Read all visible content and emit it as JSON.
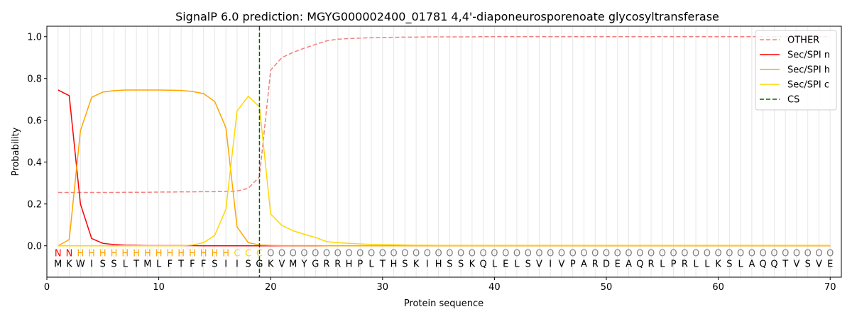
{
  "chart_data": {
    "type": "line",
    "title": "SignalP 6.0 prediction: MGYG000002400_01781 4,4'-diaponeurosporenoate glycosyltransferase",
    "xlabel": "Protein sequence",
    "ylabel": "Probability",
    "xlim": [
      0,
      71
    ],
    "ylim": [
      -0.15,
      1.05
    ],
    "x_ticks": [
      0,
      10,
      20,
      30,
      40,
      50,
      60,
      70
    ],
    "y_ticks": [
      0.0,
      0.2,
      0.4,
      0.6,
      0.8,
      1.0
    ],
    "x_tick_labels": [
      "0",
      "10",
      "20",
      "30",
      "40",
      "50",
      "60",
      "70"
    ],
    "y_tick_labels": [
      "0.0",
      "0.2",
      "0.4",
      "0.6",
      "0.8",
      "1.0"
    ],
    "grid": "vertical lines at each residue",
    "legend_position": "top-right",
    "sequence": [
      "M",
      "K",
      "W",
      "I",
      "S",
      "S",
      "L",
      "T",
      "M",
      "L",
      "F",
      "T",
      "F",
      "F",
      "S",
      "I",
      "I",
      "S",
      "G",
      "K",
      "V",
      "M",
      "Y",
      "G",
      "R",
      "R",
      "H",
      "P",
      "L",
      "T",
      "H",
      "S",
      "K",
      "I",
      "H",
      "S",
      "S",
      "K",
      "Q",
      "L",
      "E",
      "L",
      "S",
      "V",
      "I",
      "V",
      "P",
      "A",
      "R",
      "D",
      "E",
      "A",
      "Q",
      "R",
      "L",
      "P",
      "R",
      "L",
      "L",
      "K",
      "S",
      "L",
      "A",
      "Q",
      "Q",
      "T",
      "V",
      "S",
      "V",
      "E"
    ],
    "labels": [
      "N",
      "N",
      "H",
      "H",
      "H",
      "H",
      "H",
      "H",
      "H",
      "H",
      "H",
      "H",
      "H",
      "H",
      "H",
      "H",
      "C",
      "C",
      "C",
      "O",
      "O",
      "O",
      "O",
      "O",
      "O",
      "O",
      "O",
      "O",
      "O",
      "O",
      "O",
      "O",
      "O",
      "O",
      "O",
      "O",
      "O",
      "O",
      "O",
      "O",
      "O",
      "O",
      "O",
      "O",
      "O",
      "O",
      "O",
      "O",
      "O",
      "O",
      "O",
      "O",
      "O",
      "O",
      "O",
      "O",
      "O",
      "O",
      "O",
      "O",
      "O",
      "O",
      "O",
      "O",
      "O",
      "O",
      "O",
      "O",
      "O",
      "O"
    ],
    "label_colors": {
      "N": "#ff0000",
      "H": "#ffa500",
      "C": "#ffd700",
      "O": "#808080"
    },
    "cs_position": 19,
    "series": [
      {
        "name": "OTHER",
        "color": "#f08080",
        "dash": "dashed",
        "values": [
          0.255,
          0.255,
          0.255,
          0.255,
          0.255,
          0.255,
          0.256,
          0.256,
          0.256,
          0.257,
          0.257,
          0.258,
          0.258,
          0.259,
          0.259,
          0.26,
          0.262,
          0.275,
          0.33,
          0.84,
          0.9,
          0.925,
          0.945,
          0.963,
          0.98,
          0.988,
          0.991,
          0.993,
          0.995,
          0.996,
          0.997,
          0.998,
          0.998,
          0.999,
          0.999,
          0.999,
          0.999,
          0.999,
          1.0,
          1.0,
          1.0,
          1.0,
          1.0,
          1.0,
          1.0,
          1.0,
          1.0,
          1.0,
          1.0,
          1.0,
          1.0,
          1.0,
          1.0,
          1.0,
          1.0,
          1.0,
          1.0,
          1.0,
          1.0,
          1.0,
          1.0,
          1.0,
          1.0,
          1.0,
          1.0,
          1.0,
          1.0,
          1.0,
          1.0,
          1.0
        ]
      },
      {
        "name": "Sec/SPI n",
        "color": "#ff0000",
        "dash": "solid",
        "values": [
          0.745,
          0.718,
          0.2,
          0.035,
          0.012,
          0.006,
          0.003,
          0.002,
          0.001,
          0.001,
          0.001,
          0.001,
          0.001,
          0.0,
          0.0,
          0.0,
          0.0,
          0.0,
          0.0,
          0.0,
          0.0,
          0.0,
          0.0,
          0.0,
          0.0,
          0.0,
          0.0,
          0.0,
          0.0,
          0.0,
          0.0,
          0.0,
          0.0,
          0.0,
          0.0,
          0.0,
          0.0,
          0.0,
          0.0,
          0.0,
          0.0,
          0.0,
          0.0,
          0.0,
          0.0,
          0.0,
          0.0,
          0.0,
          0.0,
          0.0,
          0.0,
          0.0,
          0.0,
          0.0,
          0.0,
          0.0,
          0.0,
          0.0,
          0.0,
          0.0,
          0.0,
          0.0,
          0.0,
          0.0,
          0.0,
          0.0,
          0.0,
          0.0,
          0.0,
          0.0
        ]
      },
      {
        "name": "Sec/SPI h",
        "color": "#ffa500",
        "dash": "solid",
        "values": [
          0.0,
          0.03,
          0.55,
          0.71,
          0.735,
          0.742,
          0.745,
          0.745,
          0.745,
          0.745,
          0.744,
          0.743,
          0.738,
          0.728,
          0.69,
          0.565,
          0.09,
          0.015,
          0.004,
          0.002,
          0.001,
          0.001,
          0.001,
          0.001,
          0.0,
          0.0,
          0.0,
          0.0,
          0.0,
          0.0,
          0.0,
          0.0,
          0.0,
          0.0,
          0.0,
          0.0,
          0.0,
          0.0,
          0.0,
          0.0,
          0.0,
          0.0,
          0.0,
          0.0,
          0.0,
          0.0,
          0.0,
          0.0,
          0.0,
          0.0,
          0.0,
          0.0,
          0.0,
          0.0,
          0.0,
          0.0,
          0.0,
          0.0,
          0.0,
          0.0,
          0.0,
          0.0,
          0.0,
          0.0,
          0.0,
          0.0,
          0.0,
          0.0,
          0.0,
          0.0
        ]
      },
      {
        "name": "Sec/SPI c",
        "color": "#ffd700",
        "dash": "solid",
        "values": [
          0.0,
          0.0,
          0.0,
          0.0,
          0.0,
          0.0,
          0.0,
          0.0,
          0.0,
          0.0,
          0.0,
          0.0,
          0.004,
          0.015,
          0.05,
          0.175,
          0.645,
          0.715,
          0.665,
          0.152,
          0.098,
          0.072,
          0.055,
          0.04,
          0.02,
          0.015,
          0.012,
          0.009,
          0.007,
          0.006,
          0.005,
          0.004,
          0.003,
          0.003,
          0.002,
          0.002,
          0.002,
          0.002,
          0.002,
          0.002,
          0.002,
          0.002,
          0.002,
          0.002,
          0.002,
          0.002,
          0.002,
          0.002,
          0.002,
          0.002,
          0.002,
          0.002,
          0.002,
          0.002,
          0.002,
          0.002,
          0.002,
          0.002,
          0.002,
          0.002,
          0.002,
          0.002,
          0.002,
          0.002,
          0.002,
          0.002,
          0.002,
          0.002,
          0.002,
          0.002
        ]
      }
    ],
    "cs_legend": {
      "name": "CS",
      "color": "#006400"
    }
  }
}
